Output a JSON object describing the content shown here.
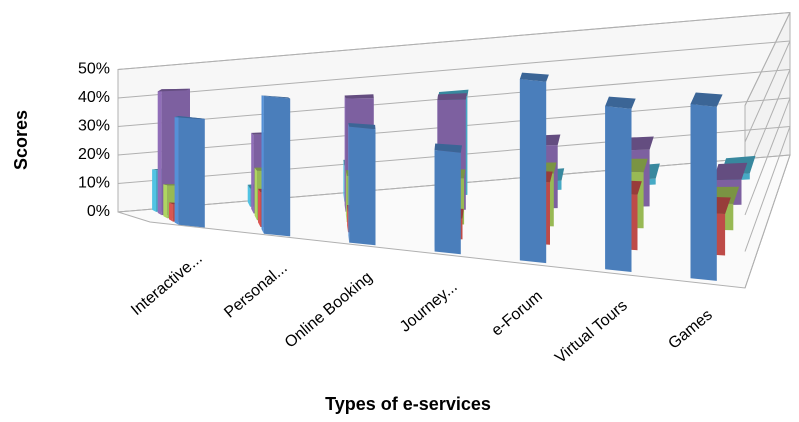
{
  "chart_data": {
    "type": "bar3d",
    "x_label": "Types of e-services",
    "y_label": "Scores",
    "categories": [
      "Interactive...",
      "Personal...",
      "Online Booking",
      "Journey...",
      "e-Forum",
      "Virtual Tours",
      "Games"
    ],
    "series": [
      {
        "color": "#4a7ebb",
        "values": [
          30,
          38,
          32,
          28,
          50,
          45,
          48
        ]
      },
      {
        "color": "#be4b48",
        "values": [
          5,
          10,
          6,
          6,
          18,
          16,
          12
        ]
      },
      {
        "color": "#98b954",
        "values": [
          10,
          15,
          14,
          14,
          16,
          17,
          8
        ]
      },
      {
        "color": "#7d60a0",
        "values": [
          40,
          25,
          36,
          35,
          20,
          18,
          8
        ]
      },
      {
        "color": "#46aac5",
        "values": [
          14,
          6,
          12,
          33,
          3,
          2,
          2
        ]
      }
    ],
    "ylim": [
      0,
      50
    ],
    "yticks": [
      {
        "value": 0,
        "label": "0%"
      },
      {
        "value": 10,
        "label": "10%"
      },
      {
        "value": 20,
        "label": "20%"
      },
      {
        "value": 30,
        "label": "30%"
      },
      {
        "value": 40,
        "label": "40%"
      },
      {
        "value": 50,
        "label": "50%"
      }
    ],
    "grid": true
  }
}
